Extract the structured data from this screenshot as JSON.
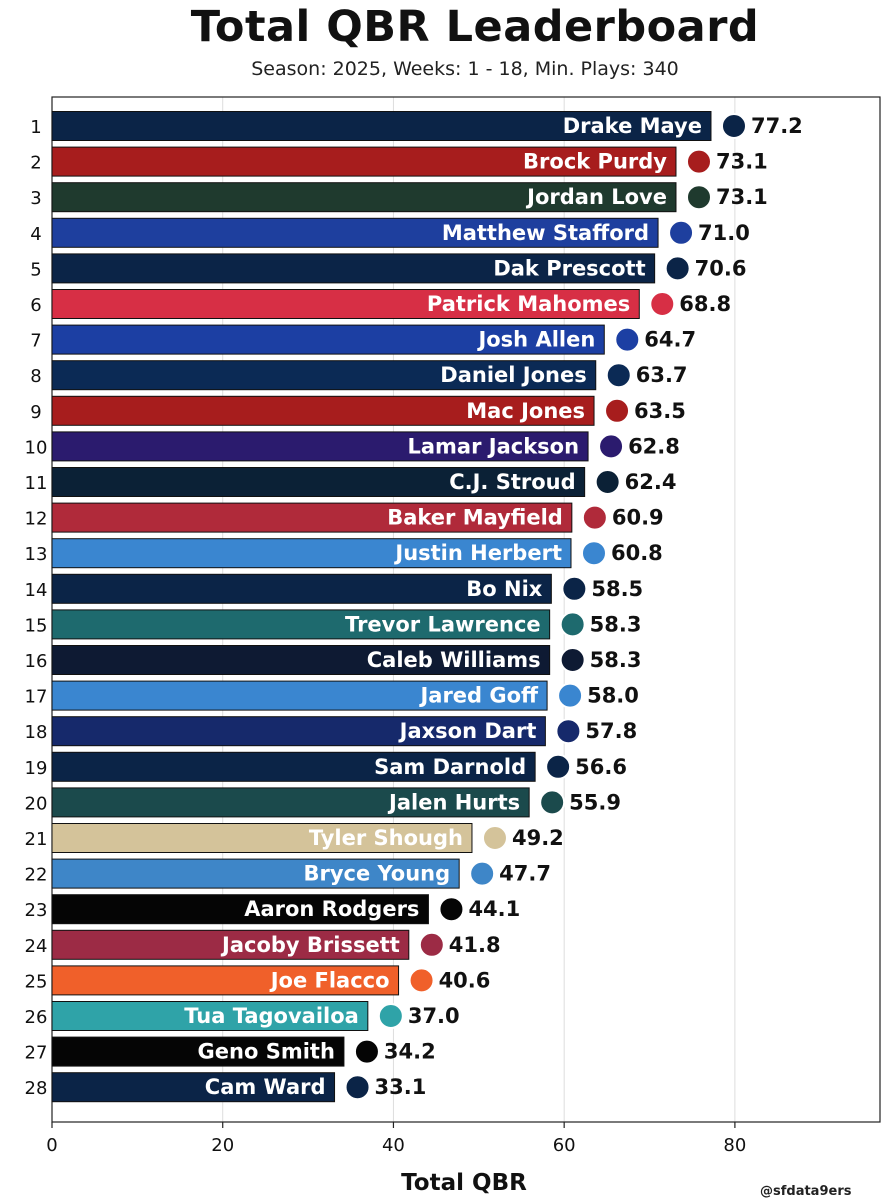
{
  "title": "Total QBR Leaderboard",
  "subtitle": "Season: 2025, Weeks: 1 - 18, Min. Plays: 340",
  "credit": "@sfdata9ers",
  "chart_data": {
    "type": "bar",
    "orientation": "horizontal",
    "title": "Total QBR Leaderboard",
    "subtitle": "Season: 2025, Weeks: 1 - 18, Min. Plays: 340",
    "xlabel": "Total QBR",
    "ylabel": "",
    "xlim": [
      0,
      97
    ],
    "xticks": [
      0,
      20,
      40,
      60,
      80
    ],
    "grid": "vertical",
    "legend": "none",
    "rows": [
      {
        "rank": "1",
        "name": "Drake Maye",
        "value": 77.2,
        "display": "77.2",
        "color": "#0B2447",
        "team": "patriots-logo"
      },
      {
        "rank": "2",
        "name": "Brock Purdy",
        "value": 73.1,
        "display": "73.1",
        "color": "#A71D1D",
        "team": "49ers-logo"
      },
      {
        "rank": "3",
        "name": "Jordan Love",
        "value": 73.1,
        "display": "73.1",
        "color": "#1F3A2E",
        "team": "packers-logo"
      },
      {
        "rank": "4",
        "name": "Matthew Stafford",
        "value": 71.0,
        "display": "71.0",
        "color": "#1E3F9E",
        "team": "rams-logo"
      },
      {
        "rank": "5",
        "name": "Dak Prescott",
        "value": 70.6,
        "display": "70.6",
        "color": "#0B2447",
        "team": "cowboys-logo"
      },
      {
        "rank": "6",
        "name": "Patrick Mahomes",
        "value": 68.8,
        "display": "68.8",
        "color": "#D72F45",
        "team": "chiefs-logo"
      },
      {
        "rank": "7",
        "name": "Josh Allen",
        "value": 64.7,
        "display": "64.7",
        "color": "#1C3FA3",
        "team": "bills-logo"
      },
      {
        "rank": "8",
        "name": "Daniel Jones",
        "value": 63.7,
        "display": "63.7",
        "color": "#0B2A55",
        "team": "colts-logo"
      },
      {
        "rank": "9",
        "name": "Mac Jones",
        "value": 63.5,
        "display": "63.5",
        "color": "#A71D1D",
        "team": "49ers-logo"
      },
      {
        "rank": "10",
        "name": "Lamar Jackson",
        "value": 62.8,
        "display": "62.8",
        "color": "#2B1B6E",
        "team": "ravens-logo"
      },
      {
        "rank": "11",
        "name": "C.J. Stroud",
        "value": 62.4,
        "display": "62.4",
        "color": "#0B2136",
        "team": "texans-logo"
      },
      {
        "rank": "12",
        "name": "Baker Mayfield",
        "value": 60.9,
        "display": "60.9",
        "color": "#B02A3A",
        "team": "buccaneers-logo"
      },
      {
        "rank": "13",
        "name": "Justin Herbert",
        "value": 60.8,
        "display": "60.8",
        "color": "#3A86D0",
        "team": "chargers-logo"
      },
      {
        "rank": "14",
        "name": "Bo Nix",
        "value": 58.5,
        "display": "58.5",
        "color": "#0B2447",
        "team": "broncos-logo"
      },
      {
        "rank": "15",
        "name": "Trevor Lawrence",
        "value": 58.3,
        "display": "58.3",
        "color": "#1E6A6E",
        "team": "jaguars-logo"
      },
      {
        "rank": "16",
        "name": "Caleb Williams",
        "value": 58.3,
        "display": "58.3",
        "color": "#0E1A33",
        "team": "bears-logo"
      },
      {
        "rank": "17",
        "name": "Jared Goff",
        "value": 58.0,
        "display": "58.0",
        "color": "#3A86D0",
        "team": "lions-logo"
      },
      {
        "rank": "18",
        "name": "Jaxson Dart",
        "value": 57.8,
        "display": "57.8",
        "color": "#16296B",
        "team": "giants-logo"
      },
      {
        "rank": "19",
        "name": "Sam Darnold",
        "value": 56.6,
        "display": "56.6",
        "color": "#0B2447",
        "team": "seahawks-logo"
      },
      {
        "rank": "20",
        "name": "Jalen Hurts",
        "value": 55.9,
        "display": "55.9",
        "color": "#1B4A4C",
        "team": "eagles-logo"
      },
      {
        "rank": "21",
        "name": "Tyler Shough",
        "value": 49.2,
        "display": "49.2",
        "color": "#D4C39A",
        "team": "saints-logo"
      },
      {
        "rank": "22",
        "name": "Bryce Young",
        "value": 47.7,
        "display": "47.7",
        "color": "#3E86C8",
        "team": "panthers-logo"
      },
      {
        "rank": "23",
        "name": "Aaron Rodgers",
        "value": 44.1,
        "display": "44.1",
        "color": "#050505",
        "team": "steelers-logo"
      },
      {
        "rank": "24",
        "name": "Jacoby Brissett",
        "value": 41.8,
        "display": "41.8",
        "color": "#9C2B45",
        "team": "cardinals-logo"
      },
      {
        "rank": "25",
        "name": "Joe Flacco",
        "value": 40.6,
        "display": "40.6",
        "color": "#F0602A",
        "team": "bengals-logo"
      },
      {
        "rank": "26",
        "name": "Tua Tagovailoa",
        "value": 37.0,
        "display": "37.0",
        "color": "#2FA3A8",
        "team": "dolphins-logo"
      },
      {
        "rank": "27",
        "name": "Geno Smith",
        "value": 34.2,
        "display": "34.2",
        "color": "#050505",
        "team": "raiders-logo"
      },
      {
        "rank": "28",
        "name": "Cam Ward",
        "value": 33.1,
        "display": "33.1",
        "color": "#0B2447",
        "team": "titans-logo"
      }
    ]
  }
}
